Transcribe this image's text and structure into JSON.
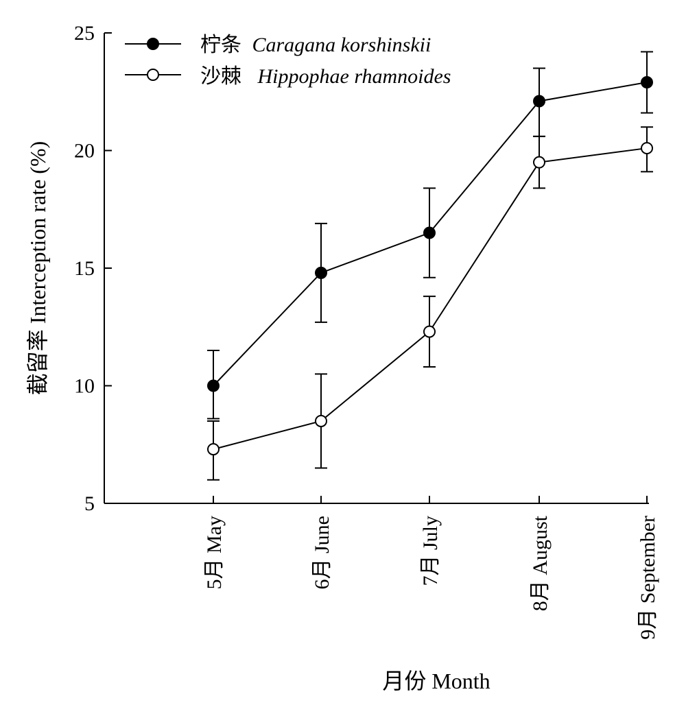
{
  "chart_data": {
    "type": "line",
    "xlabel": "月份  Month",
    "ylabel": "截留率  Interception rate (%)",
    "ylim": [
      5,
      25
    ],
    "yticks": [
      5,
      10,
      15,
      20,
      25
    ],
    "categories": [
      "5月  May",
      "6月  June",
      "7月  July",
      "8月  August",
      "9月  September"
    ],
    "series": [
      {
        "name": "柠条 Caragana korshinskii",
        "name_cn": "柠条",
        "name_latin": "Caragana korshinskii",
        "marker": "filled",
        "values": [
          10.0,
          14.8,
          16.5,
          22.1,
          22.9
        ],
        "err_high": [
          11.5,
          16.9,
          18.4,
          23.5,
          24.2
        ],
        "err_low": [
          8.6,
          12.7,
          14.6,
          20.6,
          21.6
        ]
      },
      {
        "name": "沙棘 Hippophae rhamnoides",
        "name_cn": "沙棘",
        "name_latin": "Hippophae rhamnoides",
        "marker": "open",
        "values": [
          7.3,
          8.5,
          12.3,
          19.5,
          20.1
        ],
        "err_high": [
          8.5,
          10.5,
          13.8,
          20.6,
          21.0
        ],
        "err_low": [
          6.0,
          6.5,
          10.8,
          18.4,
          19.1
        ]
      }
    ],
    "legend_position": "top-left",
    "grid": false
  }
}
